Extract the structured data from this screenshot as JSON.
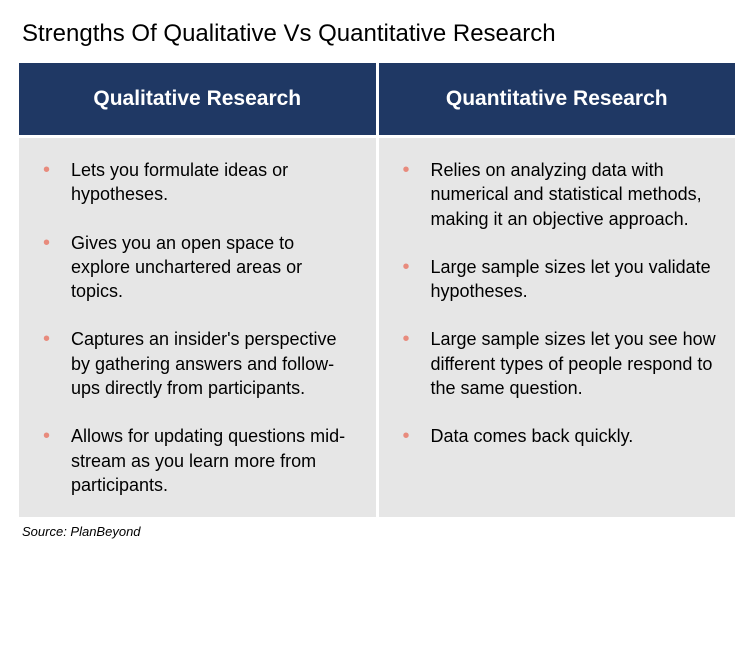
{
  "title": "Strengths Of Qualitative Vs Quantitative Research",
  "source": "Source: PlanBeyond",
  "columns": [
    {
      "header": "Qualitative Research",
      "items": [
        "Lets you formulate ideas or hypotheses.",
        "Gives you an open space to explore unchartered areas or topics.",
        "Captures an insider's perspective by gathering answers and follow-ups directly from participants.",
        "Allows for updating questions mid-stream as you learn more from participants."
      ]
    },
    {
      "header": "Quantitative Research",
      "items": [
        "Relies on analyzing data with numerical and statistical methods, making it an objective approach.",
        "Large sample sizes let you validate hypotheses.",
        "Large sample sizes let you see how different types of people respond to the same question.",
        "Data comes back quickly."
      ]
    }
  ],
  "styling": {
    "header_bg": "#1f3864",
    "header_text_color": "#ffffff",
    "body_bg": "#e6e6e6",
    "bullet_color": "#e88b7d",
    "title_fontsize": 24,
    "header_fontsize": 21,
    "body_fontsize": 18,
    "source_fontsize": 13,
    "gap_color": "#ffffff"
  }
}
